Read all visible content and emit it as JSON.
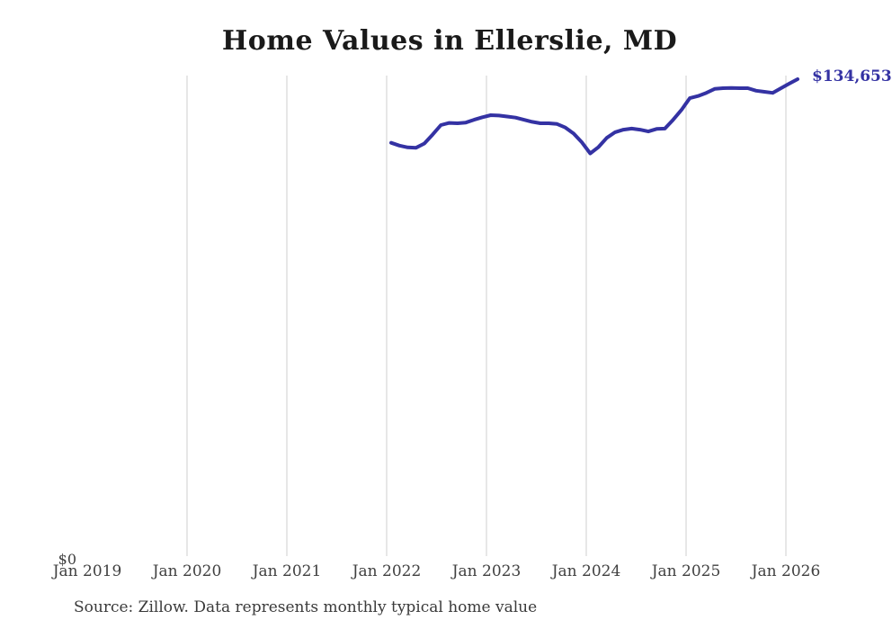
{
  "page": {
    "background_color": "#ffffff"
  },
  "chart": {
    "title": "Home Values in Ellerslie, MD",
    "end_label": "$134,653",
    "source_note": "Source: Zillow. Data represents monthly typical home value",
    "y_axis": {
      "zero_label": "$0"
    },
    "colors": {
      "line": "#3432a3",
      "end_label": "#3432a3",
      "grid": "#cfcfcf",
      "title_text": "#1a1a1a",
      "axis_text": "#404040",
      "source_text": "#3a3a3a"
    }
  },
  "chart_data": {
    "type": "line",
    "title": "Home Values in Ellerslie, MD",
    "xlabel": "",
    "ylabel": "",
    "ylim": [
      0,
      134653
    ],
    "grid": "vertical-only",
    "legend": "none",
    "x_tick_labels": [
      "Jan 2019",
      "Jan 2020",
      "Jan 2021",
      "Jan 2022",
      "Jan 2023",
      "Jan 2024",
      "Jan 2025",
      "Jan 2026"
    ],
    "gridlines_at": [
      "Jan 2020",
      "Jan 2021",
      "Jan 2022",
      "Jan 2023",
      "Jan 2024",
      "Jan 2025",
      "Jan 2026"
    ],
    "series_name": "Monthly typical home value (USD)",
    "last_point_label": "$134,653",
    "x": [
      "2022-01",
      "2022-02",
      "2022-03",
      "2022-04",
      "2022-05",
      "2022-06",
      "2022-07",
      "2022-08",
      "2022-09",
      "2022-10",
      "2022-11",
      "2022-12",
      "2023-01",
      "2023-02",
      "2023-03",
      "2023-04",
      "2023-05",
      "2023-06",
      "2023-07",
      "2023-08",
      "2023-09",
      "2023-10",
      "2023-11",
      "2023-12",
      "2024-01",
      "2024-02",
      "2024-03",
      "2024-04",
      "2024-05",
      "2024-06",
      "2024-07",
      "2024-08",
      "2024-09",
      "2024-10",
      "2024-11",
      "2024-12",
      "2025-01",
      "2025-02",
      "2025-03",
      "2025-04",
      "2025-05",
      "2025-06",
      "2025-07",
      "2025-08",
      "2025-09",
      "2025-10",
      "2025-11",
      "2025-12",
      "2026-01",
      "2026-02"
    ],
    "values": [
      116700,
      115900,
      115400,
      115300,
      116500,
      119000,
      121700,
      122300,
      122200,
      122400,
      123200,
      123900,
      124500,
      124400,
      124100,
      123800,
      123200,
      122600,
      122200,
      122200,
      122000,
      121000,
      119300,
      116800,
      113700,
      115500,
      118100,
      119700,
      120400,
      120700,
      120400,
      119900,
      120600,
      120700,
      123200,
      126000,
      129300,
      129900,
      130800,
      131900,
      132100,
      132200,
      132100,
      132100,
      131400,
      131100,
      130800,
      132100,
      133400,
      134653
    ]
  }
}
